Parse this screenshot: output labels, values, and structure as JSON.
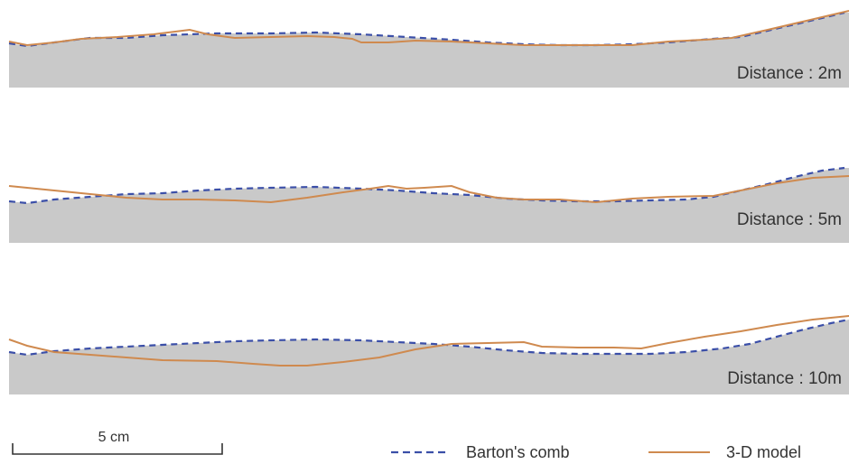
{
  "colors": {
    "rock_fill": "#c9c9c9",
    "barton_line": "#3b4fa8",
    "model_line": "#cf8a4f",
    "text": "#333333"
  },
  "panels": [
    {
      "label": "Distance : 2m"
    },
    {
      "label": "Distance : 5m"
    },
    {
      "label": "Distance : 10m"
    }
  ],
  "scale_bar": {
    "label": "5 cm"
  },
  "legend": {
    "barton": "Barton's comb",
    "model": "3-D model"
  }
}
